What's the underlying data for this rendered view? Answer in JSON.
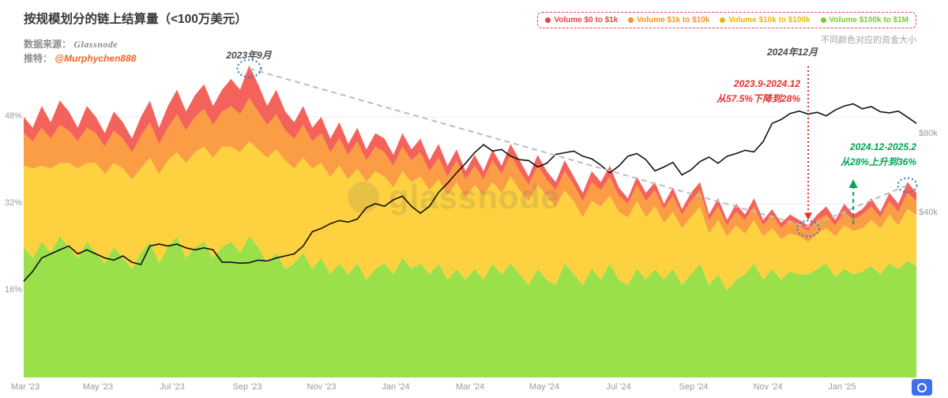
{
  "header": {
    "title": "按规模划分的链上结算量（<100万美元）",
    "source_label": "数据来源：",
    "source_value": "Glassnode",
    "twitter_label": "推特：",
    "twitter_value": "@Murphychen888"
  },
  "legend": {
    "note": "不同颜色对应的资金大小",
    "items": [
      {
        "label": "Volume $0 to $1k",
        "color": "#e8453f"
      },
      {
        "label": "Volume $1k to $10k",
        "color": "#f7941d"
      },
      {
        "label": "Volume $10k to $100k",
        "color": "#e8b800"
      },
      {
        "label": "Volume $100k to $1M",
        "color": "#7fc82f"
      }
    ]
  },
  "annotations": {
    "peak_label": "2023年9月",
    "trough_label": "2024年12月",
    "decline_line1": "2023.9-2024.12",
    "decline_line2": "从57.5%下降到28%",
    "rise_line1": "2024.12-2025.2",
    "rise_line2": "从28%上升到36%",
    "watermark": "glassnode"
  },
  "chart_data": {
    "type": "area",
    "title": "按规模划分的链上结算量（<100万美元）",
    "stacked": true,
    "x_range": [
      "Mar 2023",
      "Feb 2025"
    ],
    "x_axis": {
      "tick_labels": [
        "Mar '23",
        "May '23",
        "Jul '23",
        "Sep '23",
        "Nov '23",
        "Jan '24",
        "Mar '24",
        "May '24",
        "Jul '24",
        "Sep '24",
        "Nov '24",
        "Jan '25"
      ]
    },
    "y_axis_left": {
      "unit": "%",
      "tick_labels": [
        "48%",
        "32%",
        "16%"
      ],
      "ticks_pct": [
        48,
        32,
        16
      ],
      "ylim": [
        0,
        60
      ]
    },
    "y_axis_right": {
      "unit": "USD",
      "tick_labels": [
        "$80k",
        "$40k"
      ],
      "ticks_usd_k": [
        80,
        40
      ],
      "scale": "log2"
    },
    "series": [
      {
        "name": "Volume $100k to $1M",
        "color": "#9ae04a",
        "values": [
          24,
          22,
          25,
          23,
          26,
          24,
          22,
          25,
          23,
          21,
          24,
          22,
          20,
          23,
          25,
          21,
          24,
          26,
          22,
          24,
          25,
          22,
          24,
          25,
          23,
          26,
          24,
          21,
          23,
          20,
          21,
          23,
          20,
          22,
          19,
          21,
          19,
          21,
          18,
          20,
          21,
          19,
          22,
          20,
          21,
          19,
          21,
          18,
          20,
          18,
          20,
          18,
          21,
          19,
          21,
          19,
          17,
          20,
          18,
          17,
          21,
          19,
          17,
          20,
          18,
          21,
          18,
          17,
          20,
          18,
          20,
          18,
          20,
          17,
          19,
          21,
          17,
          19,
          16,
          18,
          19,
          21,
          18,
          20,
          18,
          19.5,
          19,
          19,
          20,
          21,
          18.5,
          20,
          19,
          19.5,
          20.5,
          19,
          21,
          20,
          21.5,
          20.5
        ]
      },
      {
        "name": "Volume $10k to $100k",
        "color": "#fdd13f",
        "values": [
          15,
          16.5,
          14,
          15.5,
          13.5,
          15.5,
          16.5,
          14.5,
          16.5,
          16.5,
          15.5,
          16.5,
          16.5,
          15.5,
          15.5,
          16.5,
          16,
          15.5,
          17.5,
          17.5,
          17.5,
          18.5,
          18.5,
          17.5,
          18.5,
          17.5,
          18,
          19.5,
          19,
          20,
          17.5,
          17.5,
          18.5,
          17.5,
          18,
          18,
          17.5,
          17.5,
          18,
          18,
          16,
          16,
          16,
          16,
          16,
          15.5,
          15.5,
          15.5,
          16,
          15,
          15.5,
          15.5,
          15,
          15,
          16,
          15.5,
          15.5,
          15.5,
          15.5,
          14.5,
          13.5,
          13.5,
          12.5,
          12.5,
          13.5,
          12.5,
          12.5,
          12.5,
          12.5,
          11.5,
          11.5,
          10.5,
          10.5,
          10.5,
          10.5,
          10.5,
          9.5,
          10,
          10,
          10,
          7.5,
          8,
          8,
          7.5,
          7.5,
          7,
          7,
          6,
          6.5,
          6.5,
          7.5,
          8,
          8,
          8,
          8.5,
          8.5,
          9,
          8,
          9.5,
          9.5
        ]
      },
      {
        "name": "Volume $1k to $10k",
        "color": "#fa9d45",
        "values": [
          6,
          5,
          7,
          5.5,
          7,
          6,
          5,
          6.5,
          5.5,
          5,
          6,
          5.5,
          5,
          6,
          6.5,
          5.5,
          6,
          7,
          6,
          6.5,
          7,
          6,
          6.5,
          7.5,
          7,
          8,
          7,
          6,
          6.5,
          5.5,
          5.5,
          6,
          5,
          5.5,
          4.5,
          5,
          4.5,
          5,
          4,
          4.5,
          4.5,
          4,
          4.5,
          4,
          4.5,
          3.5,
          4,
          3.5,
          4,
          3.5,
          3.5,
          3,
          4,
          3.5,
          4,
          3.5,
          3,
          3.5,
          3,
          3,
          3.5,
          3,
          3,
          3.5,
          3,
          3.5,
          3,
          2.5,
          3,
          3,
          3,
          2.5,
          3,
          2.5,
          3,
          3,
          2.5,
          2.5,
          2,
          2.5,
          2.5,
          2.5,
          2,
          2.5,
          2,
          2.5,
          2,
          2,
          2.5,
          2.5,
          2,
          2.5,
          2,
          2.5,
          2.5,
          2,
          2.5,
          2.5,
          3,
          2.5
        ]
      },
      {
        "name": "Volume $0 to $1k",
        "color": "#f4625c",
        "values": [
          3,
          2.5,
          4,
          3,
          4.5,
          3.5,
          2.5,
          4,
          3,
          2.5,
          3.5,
          3,
          2.5,
          3.5,
          4,
          3,
          4,
          4.5,
          3.5,
          4,
          4.5,
          3.5,
          4,
          5,
          4.5,
          6,
          5,
          3.5,
          4.5,
          3.5,
          3,
          3.5,
          2.5,
          3,
          2.5,
          3,
          2,
          2.5,
          2,
          2.5,
          2.5,
          2,
          2.5,
          2,
          2.5,
          2,
          2.5,
          2,
          2,
          1.5,
          2,
          1.5,
          2,
          1.5,
          2,
          2,
          1.5,
          2,
          1.5,
          1.5,
          2,
          1.5,
          1.5,
          2,
          1.5,
          2,
          1.5,
          1,
          1.5,
          1.5,
          1.5,
          1,
          1.5,
          1,
          1.5,
          1.5,
          1,
          1.5,
          1,
          1.5,
          1,
          1.5,
          1,
          1,
          1,
          1,
          1,
          1,
          1,
          1.5,
          1,
          1.5,
          1,
          1,
          1.5,
          1,
          1.5,
          1.5,
          2,
          1.5
        ]
      }
    ],
    "price_line": {
      "name": "BTC Price",
      "color": "#111111",
      "values_k": [
        22,
        24,
        27,
        28,
        29,
        30,
        28,
        29,
        28,
        27,
        26.5,
        27.5,
        26,
        25.5,
        30,
        30.5,
        30,
        30.5,
        29.5,
        29,
        29.5,
        29,
        26,
        26,
        25.8,
        25.9,
        26.5,
        26.3,
        27,
        27.5,
        28,
        30,
        34,
        35,
        36.5,
        37.5,
        37,
        38,
        42,
        43.5,
        42.5,
        45,
        46.5,
        42.5,
        40,
        42.5,
        48,
        52,
        57,
        62,
        68,
        73,
        69,
        70,
        66,
        64,
        63.5,
        60,
        62,
        67,
        68,
        69,
        66,
        64.5,
        61,
        57,
        60.5,
        66,
        67.5,
        64,
        58,
        60,
        62.5,
        56,
        58.5,
        63,
        65.5,
        62,
        66,
        67.5,
        69.5,
        68.5,
        75,
        88,
        91,
        96,
        98,
        95.5,
        97,
        94,
        99,
        102.5,
        104.5,
        100,
        102,
        97.5,
        96.5,
        98,
        93,
        88
      ]
    },
    "markers": {
      "peak_index": 25,
      "trough_index": 87,
      "end_index": 98,
      "green_arrow_index": 92,
      "peak_value_pct": 57.5,
      "trough_value_pct": 28,
      "end_value_pct": 36
    },
    "annotation_colors": {
      "trend_dash": "#bdbdbd",
      "circle_blue": "#3079c9",
      "decline_red": "#e8312f",
      "rise_green": "#00a652",
      "grid": "#ececec",
      "watermark_gray": "#666666"
    }
  }
}
